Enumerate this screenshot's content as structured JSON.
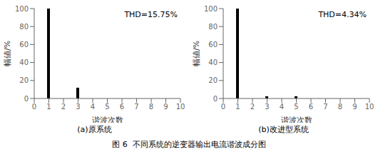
{
  "title": "图 6  不同系统的逆变器输出电流谐波成分图",
  "chart_data": [
    {
      "type": "bar",
      "title": "(a)原系统",
      "x": [
        1,
        3
      ],
      "values": [
        100,
        12
      ],
      "color": "#000000",
      "xlim": [
        0,
        10
      ],
      "xticks": [
        0,
        1,
        2,
        3,
        4,
        5,
        6,
        7,
        8,
        9,
        10
      ],
      "ylim": [
        0,
        100
      ],
      "yticks": [
        0,
        20,
        40,
        60,
        80,
        100
      ],
      "xlabel": "谐波次数",
      "ylabel": "幅値/%",
      "annotations": [
        "THD=15.75%"
      ]
    },
    {
      "type": "bar",
      "title": "(b)改进型系统",
      "x": [
        1,
        3,
        5
      ],
      "values": [
        100,
        2.5,
        2.5
      ],
      "color": "#000000",
      "xlim": [
        0,
        10
      ],
      "xticks": [
        0,
        1,
        2,
        3,
        4,
        5,
        6,
        7,
        8,
        9,
        10
      ],
      "ylim": [
        0,
        100
      ],
      "yticks": [
        0,
        20,
        40,
        60,
        80,
        100
      ],
      "xlabel": "谐波次数",
      "ylabel": "幅値/%",
      "annotations": [
        "THD=4.34%"
      ]
    }
  ]
}
